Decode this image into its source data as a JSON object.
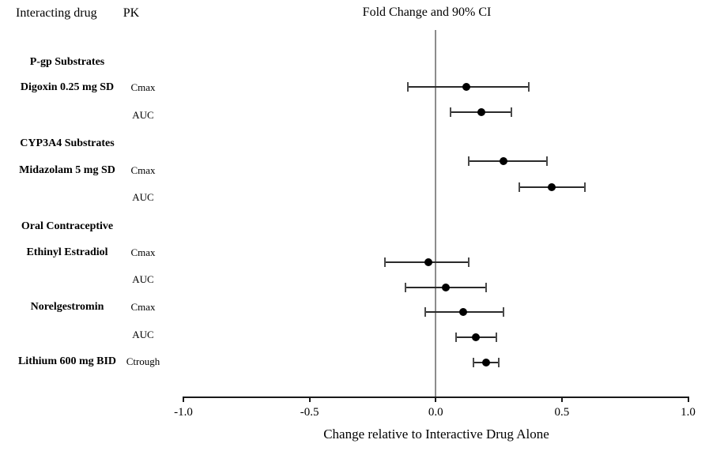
{
  "header": {
    "col1": "Interacting drug",
    "col2": "PK",
    "title": "Fold Change and 90% CI"
  },
  "colors": {
    "background": "#ffffff",
    "text": "#000000",
    "reference_line": "#8c8c8c",
    "error_bar": "#2a2a2a",
    "cap": "#4a4a4a",
    "point": "#000000",
    "axis": "#1a1a1a"
  },
  "chart_data": {
    "type": "scatter",
    "subtype": "forest-plot-with-error-bars",
    "title": "Fold Change and 90% CI",
    "xlabel": "Change relative to Interactive Drug Alone",
    "ylabel": "",
    "xlim": [
      -1.0,
      1.0
    ],
    "x_ticks": [
      -1.0,
      -0.5,
      0.0,
      0.5,
      1.0
    ],
    "x_tick_labels": [
      "-1.0",
      "-0.5",
      "0.0",
      "0.5",
      "1.0"
    ],
    "reference_line_x": 0.0,
    "grid": false,
    "legend": false,
    "ci_level": "90% CI",
    "rows": [
      {
        "type": "group",
        "label": "P-gp Substrates"
      },
      {
        "type": "data",
        "label": "Digoxin 0.25 mg SD",
        "pk": "Cmax",
        "value": 0.12,
        "ci_low": -0.11,
        "ci_high": 0.37
      },
      {
        "type": "data",
        "label": "",
        "pk": "AUC",
        "value": 0.18,
        "ci_low": 0.06,
        "ci_high": 0.3
      },
      {
        "type": "group",
        "label": "CYP3A4 Substrates"
      },
      {
        "type": "data",
        "label": "Midazolam 5 mg SD",
        "pk": "Cmax",
        "value": 0.27,
        "ci_low": 0.13,
        "ci_high": 0.44
      },
      {
        "type": "data",
        "label": "",
        "pk": "AUC",
        "value": 0.46,
        "ci_low": 0.33,
        "ci_high": 0.59
      },
      {
        "type": "group",
        "label": "Oral Contraceptive"
      },
      {
        "type": "data",
        "label": "Ethinyl Estradiol",
        "pk": "Cmax",
        "value": -0.03,
        "ci_low": -0.2,
        "ci_high": 0.13
      },
      {
        "type": "data",
        "label": "",
        "pk": "AUC",
        "value": 0.04,
        "ci_low": -0.12,
        "ci_high": 0.2
      },
      {
        "type": "data",
        "label": "Norelgestromin",
        "pk": "Cmax",
        "value": 0.11,
        "ci_low": -0.04,
        "ci_high": 0.27
      },
      {
        "type": "data",
        "label": "",
        "pk": "AUC",
        "value": 0.16,
        "ci_low": 0.08,
        "ci_high": 0.24
      },
      {
        "type": "data",
        "label": "Lithium 600 mg BID",
        "pk": "Ctrough",
        "value": 0.2,
        "ci_low": 0.15,
        "ci_high": 0.25
      }
    ]
  }
}
